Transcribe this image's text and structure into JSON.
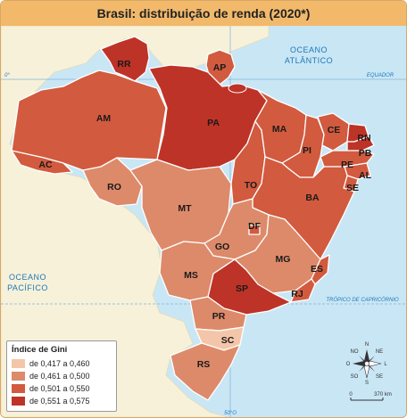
{
  "title": "Brasil: distribuição de renda (2020*)",
  "oceans": {
    "atlantic_line1": "OCEANO",
    "atlantic_line2": "ATLÂNTICO",
    "pacific_line1": "OCEANO",
    "pacific_line2": "PACÍFICO"
  },
  "lines": {
    "equator": "EQUADOR",
    "equator_deg": "0°",
    "capricorn": "TRÓPICO DE CAPRICÓRNIO",
    "meridian": "50°O"
  },
  "colors": {
    "class1": "#f4c6a9",
    "class2": "#dd8a6a",
    "class3": "#d25a3e",
    "class4": "#be3327",
    "ocean": "#c9e6f5",
    "land_outside": "#f7f1d9"
  },
  "legend": {
    "title": "Índice de Gini",
    "items": [
      {
        "label": "de 0,417 a 0,460",
        "color": "#f4c6a9"
      },
      {
        "label": "de 0,461 a 0,500",
        "color": "#dd8a6a"
      },
      {
        "label": "de 0,501 a 0,550",
        "color": "#d25a3e"
      },
      {
        "label": "de 0,551 a 0,575",
        "color": "#be3327"
      }
    ]
  },
  "compass": {
    "n": "N",
    "s": "S",
    "l": "L",
    "o": "O",
    "ne": "NE",
    "no": "NO",
    "se": "SE",
    "so": "SO"
  },
  "scale": {
    "start": "0",
    "end": "370 km"
  },
  "states": {
    "RR": "RR",
    "AP": "AP",
    "AM": "AM",
    "PA": "PA",
    "MA": "MA",
    "CE": "CE",
    "RN": "RN",
    "PB": "PB",
    "PI": "PI",
    "PE": "PE",
    "AL": "AL",
    "SE": "SE",
    "AC": "AC",
    "RO": "RO",
    "TO": "TO",
    "BA": "BA",
    "MT": "MT",
    "DF": "DF",
    "GO": "GO",
    "MG": "MG",
    "ES": "ES",
    "MS": "MS",
    "SP": "SP",
    "RJ": "RJ",
    "PR": "PR",
    "SC": "SC",
    "RS": "RS"
  }
}
